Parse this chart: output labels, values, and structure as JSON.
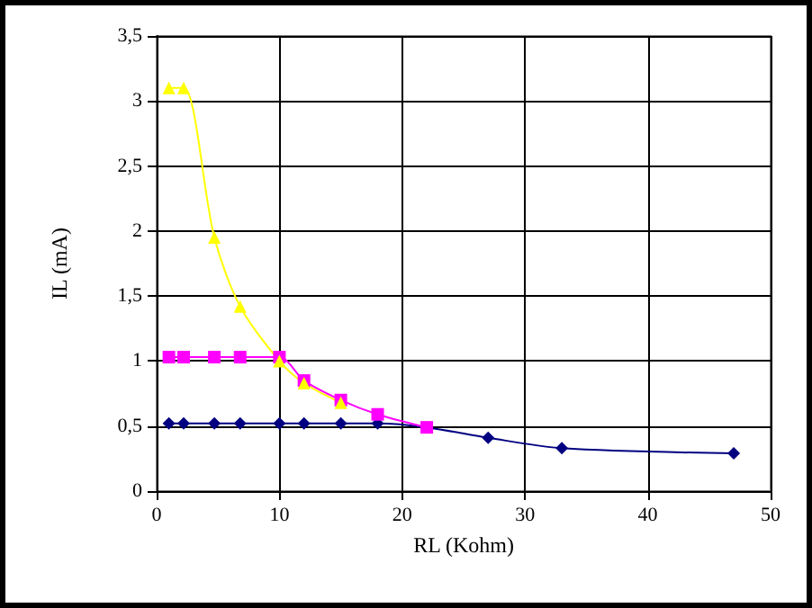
{
  "chart_data": {
    "type": "line",
    "xlabel": "RL (Kohm)",
    "ylabel": "IL (mA)",
    "xlim": [
      0,
      50
    ],
    "xticks": [
      0,
      10,
      20,
      30,
      40,
      50
    ],
    "ylim": [
      0,
      3.5
    ],
    "yticks": [
      0,
      {
        "value": 0.5,
        "label": "0,5"
      },
      1,
      {
        "value": 1.5,
        "label": "1,5"
      },
      2,
      {
        "value": 2.5,
        "label": "2,5"
      },
      3,
      {
        "value": 3.5,
        "label": "3,5"
      }
    ],
    "grid": true,
    "series": [
      {
        "color": "#000080",
        "marker": "diamond",
        "x": [
          1,
          2.2,
          4.7,
          6.8,
          10,
          12,
          15,
          18,
          22,
          27,
          33,
          47
        ],
        "values": [
          0.52,
          0.52,
          0.52,
          0.52,
          0.52,
          0.52,
          0.52,
          0.52,
          0.49,
          0.41,
          0.33,
          0.29
        ]
      },
      {
        "color": "#ff00ff",
        "marker": "square",
        "x": [
          1,
          2.2,
          4.7,
          6.8,
          10,
          12,
          15,
          18,
          22
        ],
        "values": [
          1.03,
          1.03,
          1.03,
          1.03,
          1.03,
          0.85,
          0.7,
          0.59,
          0.49
        ]
      },
      {
        "color": "#ffff00",
        "marker": "triangle",
        "x": [
          1,
          2.2,
          4.7,
          6.8,
          10,
          12,
          15
        ],
        "values": [
          3.1,
          3.1,
          1.95,
          1.42,
          1.0,
          0.83,
          0.68
        ]
      }
    ]
  }
}
